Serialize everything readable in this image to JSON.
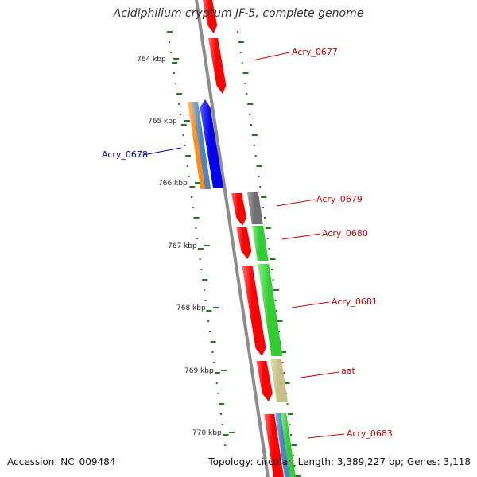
{
  "title": "Acidiphilium cryptum JF-5, complete genome",
  "footer": {
    "accession": "Accession: NC_009484",
    "summary": "Topology: circular; Length: 3,389,227 bp; Genes: 3,118"
  },
  "colors": {
    "backbone": "#8c8c8c",
    "tick": "#1e7a1e",
    "forward_gene": "#ff0000",
    "reverse_gene": "#0000ee",
    "label_red": "#d40000",
    "label_blue": "#0000cc",
    "green_feature": "#33cc33",
    "gray_feature": "#707070",
    "khaki_feature": "#c8c088",
    "orange_feature": "#ff8c1a",
    "steelblue_feature": "#4a86c0"
  },
  "scale_labels": [
    "764 kbp",
    "765 kbp",
    "766 kbp",
    "767 kbp",
    "768 kbp",
    "769 kbp",
    "770 kbp"
  ],
  "gene_labels": [
    {
      "text": "Acry_0677",
      "color": "#d40000"
    },
    {
      "text": "Acry_0678",
      "color": "#0000cc"
    },
    {
      "text": "Acry_0679",
      "color": "#d40000"
    },
    {
      "text": "Acry_0680",
      "color": "#d40000"
    },
    {
      "text": "Acry_0681",
      "color": "#d40000"
    },
    {
      "text": "aat",
      "color": "#d40000"
    },
    {
      "text": "Acry_0683",
      "color": "#d40000"
    }
  ]
}
